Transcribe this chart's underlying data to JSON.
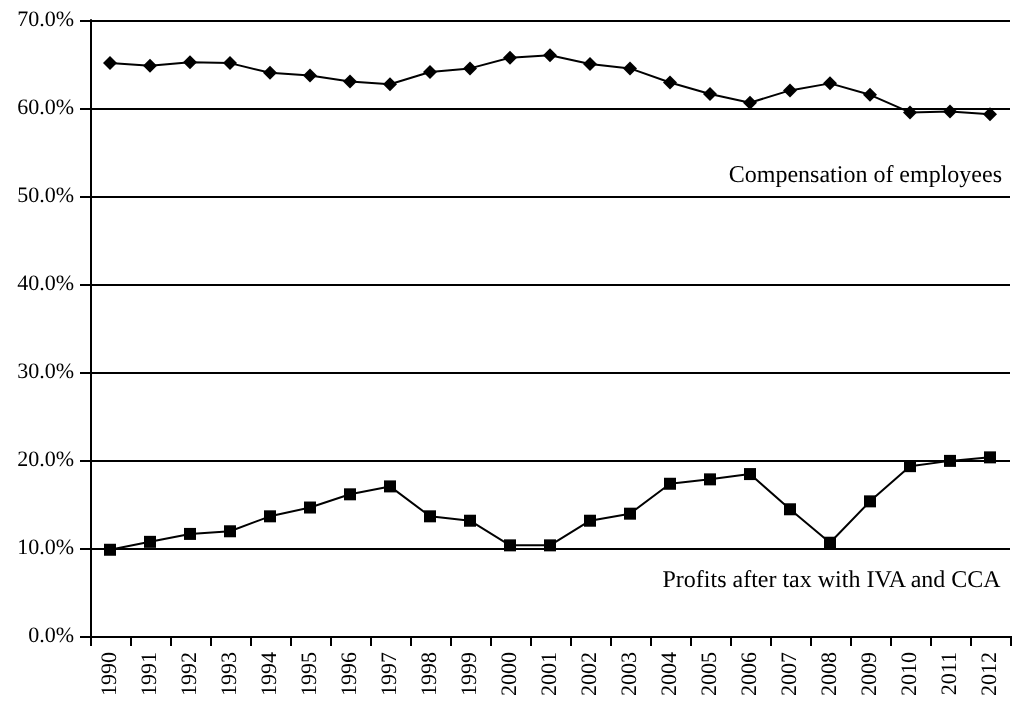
{
  "chart_data": {
    "type": "line",
    "categories": [
      "1990",
      "1991",
      "1992",
      "1993",
      "1994",
      "1995",
      "1996",
      "1997",
      "1998",
      "1999",
      "2000",
      "2001",
      "2002",
      "2003",
      "2004",
      "2005",
      "2006",
      "2007",
      "2008",
      "2009",
      "2010",
      "2011",
      "2012"
    ],
    "series": [
      {
        "name": "Compensation of employees",
        "color": "#000000",
        "marker": "diamond",
        "values": [
          65.1,
          64.8,
          65.2,
          65.1,
          64.0,
          63.7,
          63.0,
          62.7,
          64.1,
          64.5,
          65.7,
          66.0,
          65.0,
          64.5,
          62.9,
          61.6,
          60.6,
          62.0,
          62.8,
          61.5,
          59.5,
          59.6,
          59.3
        ]
      },
      {
        "name": "Profits after tax with IVA and CCA",
        "color": "#000000",
        "marker": "square",
        "values": [
          9.8,
          10.7,
          11.6,
          11.9,
          13.6,
          14.6,
          16.1,
          17.0,
          13.6,
          13.1,
          10.3,
          10.3,
          13.1,
          13.9,
          17.3,
          17.8,
          18.4,
          14.4,
          10.6,
          15.3,
          19.3,
          19.9,
          20.3
        ]
      }
    ],
    "ylim": [
      0,
      70
    ],
    "yticks": [
      {
        "value": 0,
        "label": "0.0%"
      },
      {
        "value": 10,
        "label": "10.0%"
      },
      {
        "value": 20,
        "label": "20.0%"
      },
      {
        "value": 30,
        "label": "30.0%"
      },
      {
        "value": 40,
        "label": "40.0%"
      },
      {
        "value": 50,
        "label": "50.0%"
      },
      {
        "value": 60,
        "label": "60.0%"
      },
      {
        "value": 70,
        "label": "70.0%"
      }
    ],
    "grid": "y",
    "legend": false,
    "line_style": "solid"
  }
}
